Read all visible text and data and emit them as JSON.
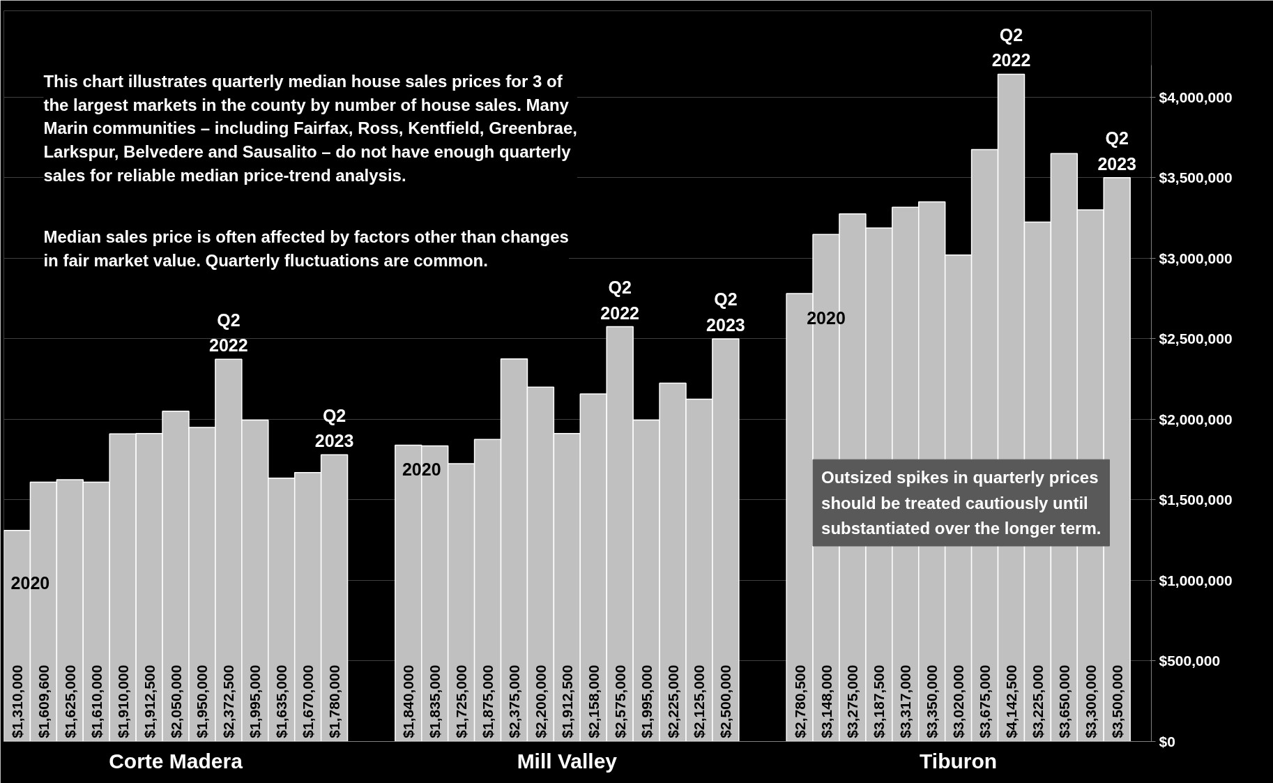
{
  "chart_data": {
    "type": "bar",
    "title": "This chart illustrates quarterly median house sales prices for 3 of the largest markets in the county by number of house sales. Many Marin communities – including Fairfax, Ross, Kentfield, Greenbrae, Larkspur, Belvedere and Sausalito – do not have enough quarterly sales for reliable median price-trend analysis.",
    "subtitle": "Median sales price is often affected by factors other than changes in fair market value. Quarterly fluctuations are common.",
    "categories": [
      "Corte Madera",
      "Mill Valley",
      "Tiburon"
    ],
    "series": [
      {
        "color": "#c0c0c0",
        "values": [
          1310000,
          1840000,
          2780500
        ],
        "value_labels": [
          "$1,310,000",
          "$1,840,000",
          "$2,780,500"
        ]
      },
      {
        "color": "#c0c0c0",
        "values": [
          1609600,
          1835000,
          3148000
        ],
        "value_labels": [
          "$1,609,600",
          "$1,835,000",
          "$3,148,000"
        ]
      },
      {
        "color": "#c0c0c0",
        "values": [
          1625000,
          1725000,
          3275000
        ],
        "value_labels": [
          "$1,625,000",
          "$1,725,000",
          "$3,275,000"
        ]
      },
      {
        "color": "#c0c0c0",
        "values": [
          1610000,
          1875000,
          3187500
        ],
        "value_labels": [
          "$1,610,000",
          "$1,875,000",
          "$3,187,500"
        ]
      },
      {
        "color": "#c0c0c0",
        "values": [
          1910000,
          2375000,
          3317000
        ],
        "value_labels": [
          "$1,910,000",
          "$2,375,000",
          "$3,317,000"
        ]
      },
      {
        "color": "#c0c0c0",
        "values": [
          1912500,
          2200000,
          3350000
        ],
        "value_labels": [
          "$1,912,500",
          "$2,200,000",
          "$3,350,000"
        ]
      },
      {
        "color": "#c0c0c0",
        "values": [
          2050000,
          1912500,
          3020000
        ],
        "value_labels": [
          "$2,050,000",
          "$1,912,500",
          "$3,020,000"
        ]
      },
      {
        "color": "#c0c0c0",
        "values": [
          1950000,
          2158000,
          3675000
        ],
        "value_labels": [
          "$1,950,000",
          "$2,158,000",
          "$3,675,000"
        ]
      },
      {
        "color": "#c0c0c0",
        "values": [
          2372500,
          2575000,
          4142500
        ],
        "value_labels": [
          "$2,372,500",
          "$2,575,000",
          "$4,142,500"
        ]
      },
      {
        "color": "#c0c0c0",
        "values": [
          1995000,
          1995000,
          3225000
        ],
        "value_labels": [
          "$1,995,000",
          "$1,995,000",
          "$3,225,000"
        ]
      },
      {
        "color": "#c0c0c0",
        "values": [
          1635000,
          2225000,
          3650000
        ],
        "value_labels": [
          "$1,635,000",
          "$2,225,000",
          "$3,650,000"
        ]
      },
      {
        "color": "#c0c0c0",
        "values": [
          1670000,
          2125000,
          3300000
        ],
        "value_labels": [
          "$1,670,000",
          "$2,125,000",
          "$3,300,000"
        ]
      },
      {
        "color": "#c0c0c0",
        "values": [
          1780000,
          2500000,
          3500000
        ],
        "value_labels": [
          "$1,780,000",
          "$2,500,000",
          "$3,500,000"
        ]
      }
    ],
    "ylim": [
      0,
      4200000
    ],
    "yticks": [
      {
        "value": 0,
        "label": "$0"
      },
      {
        "value": 500000,
        "label": "$500,000"
      },
      {
        "value": 1000000,
        "label": "$1,000,000"
      },
      {
        "value": 1500000,
        "label": "$1,500,000"
      },
      {
        "value": 2000000,
        "label": "$2,000,000"
      },
      {
        "value": 2500000,
        "label": "$2,500,000"
      },
      {
        "value": 3000000,
        "label": "$3,000,000"
      },
      {
        "value": 3500000,
        "label": "$3,500,000"
      },
      {
        "value": 4000000,
        "label": "$4,000,000"
      }
    ],
    "grid": "y",
    "annotations": [
      "2020",
      "Q2 2022",
      "Q2 2023",
      "2020",
      "Q2 2022",
      "Q2 2023",
      "2020",
      "Q2 2022",
      "Q2 2023",
      "Outsized spikes in quarterly prices should be treated cautiously until substantiated over the longer term."
    ]
  }
}
